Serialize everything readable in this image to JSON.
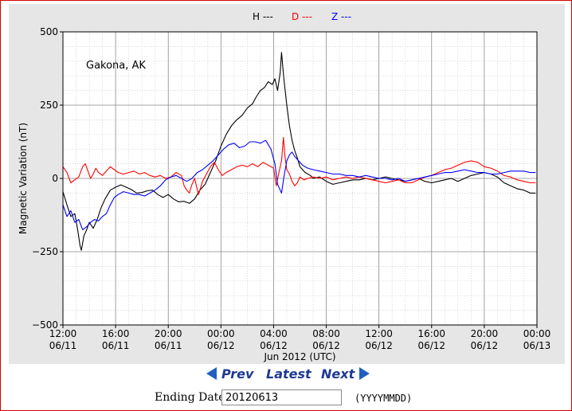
{
  "chart_data": {
    "type": "line",
    "legend": [
      {
        "name": "H ---",
        "color": "#000000"
      },
      {
        "name": "D ---",
        "color": "#ff0000"
      },
      {
        "name": "Z ---",
        "color": "#0000ff"
      }
    ],
    "annotation": "Gakona, AK",
    "ylabel": "Magnetic Variation (nT)",
    "xlabel": "Jun 2012 (UTC)",
    "ylim": [
      -500,
      500
    ],
    "yticks": [
      500,
      250,
      0,
      -250,
      -500
    ],
    "ytick_labels": [
      "500",
      "250",
      "0",
      "−250",
      "−500"
    ],
    "xlim": [
      0,
      36
    ],
    "xticks": [
      0,
      4,
      8,
      12,
      16,
      20,
      24,
      28,
      32,
      36
    ],
    "xtick_labels": [
      [
        "12:00",
        "06/11"
      ],
      [
        "16:00",
        "06/11"
      ],
      [
        "20:00",
        "06/11"
      ],
      [
        "00:00",
        "06/12"
      ],
      [
        "04:00",
        "06/12"
      ],
      [
        "08:00",
        "06/12"
      ],
      [
        "12:00",
        "06/12"
      ],
      [
        "16:00",
        "06/12"
      ],
      [
        "20:00",
        "06/12"
      ],
      [
        "00:00",
        "06/13"
      ]
    ],
    "legend_position": "top-center",
    "grid": true,
    "series": [
      {
        "name": "H ---",
        "color": "#000000",
        "points": [
          [
            0,
            -45
          ],
          [
            0.3,
            -90
          ],
          [
            0.6,
            -130
          ],
          [
            0.9,
            -120
          ],
          [
            1.1,
            -170
          ],
          [
            1.3,
            -230
          ],
          [
            1.4,
            -245
          ],
          [
            1.6,
            -195
          ],
          [
            1.8,
            -175
          ],
          [
            2.0,
            -150
          ],
          [
            2.3,
            -170
          ],
          [
            2.6,
            -140
          ],
          [
            2.9,
            -100
          ],
          [
            3.2,
            -70
          ],
          [
            3.6,
            -40
          ],
          [
            4.0,
            -30
          ],
          [
            4.4,
            -22
          ],
          [
            4.8,
            -30
          ],
          [
            5.2,
            -38
          ],
          [
            5.6,
            -50
          ],
          [
            6.0,
            -48
          ],
          [
            6.4,
            -42
          ],
          [
            6.8,
            -40
          ],
          [
            7.2,
            -55
          ],
          [
            7.6,
            -65
          ],
          [
            8.0,
            -55
          ],
          [
            8.4,
            -70
          ],
          [
            8.8,
            -80
          ],
          [
            9.2,
            -78
          ],
          [
            9.6,
            -85
          ],
          [
            10.0,
            -70
          ],
          [
            10.4,
            -40
          ],
          [
            10.8,
            -20
          ],
          [
            11.2,
            20
          ],
          [
            11.6,
            60
          ],
          [
            12.0,
            110
          ],
          [
            12.4,
            150
          ],
          [
            12.8,
            180
          ],
          [
            13.2,
            200
          ],
          [
            13.6,
            215
          ],
          [
            14.0,
            240
          ],
          [
            14.4,
            255
          ],
          [
            14.7,
            280
          ],
          [
            15.0,
            300
          ],
          [
            15.3,
            310
          ],
          [
            15.6,
            330
          ],
          [
            15.9,
            320
          ],
          [
            16.1,
            340
          ],
          [
            16.3,
            300
          ],
          [
            16.5,
            360
          ],
          [
            16.6,
            430
          ],
          [
            16.7,
            380
          ],
          [
            16.8,
            330
          ],
          [
            17.0,
            250
          ],
          [
            17.2,
            180
          ],
          [
            17.4,
            130
          ],
          [
            17.6,
            95
          ],
          [
            17.8,
            70
          ],
          [
            18.0,
            40
          ],
          [
            18.2,
            30
          ],
          [
            18.4,
            20
          ],
          [
            18.6,
            15
          ],
          [
            18.8,
            10
          ],
          [
            19.0,
            0
          ],
          [
            19.5,
            5
          ],
          [
            20.0,
            -10
          ],
          [
            20.5,
            -20
          ],
          [
            21.0,
            -15
          ],
          [
            21.5,
            -10
          ],
          [
            22.0,
            -5
          ],
          [
            22.5,
            -5
          ],
          [
            23.0,
            0
          ],
          [
            23.5,
            -5
          ],
          [
            24.0,
            0
          ],
          [
            24.5,
            5
          ],
          [
            25.0,
            0
          ],
          [
            25.5,
            -5
          ],
          [
            26.0,
            -10
          ],
          [
            26.5,
            -5
          ],
          [
            27.0,
            0
          ],
          [
            27.5,
            -10
          ],
          [
            28.0,
            -15
          ],
          [
            28.5,
            -10
          ],
          [
            29.0,
            -5
          ],
          [
            29.5,
            0
          ],
          [
            30.0,
            -10
          ],
          [
            30.5,
            0
          ],
          [
            31.0,
            10
          ],
          [
            31.5,
            15
          ],
          [
            32.0,
            20
          ],
          [
            32.5,
            15
          ],
          [
            33.0,
            5
          ],
          [
            33.5,
            -15
          ],
          [
            34.0,
            -25
          ],
          [
            34.5,
            -35
          ],
          [
            35.0,
            -40
          ],
          [
            35.5,
            -50
          ],
          [
            35.9,
            -50
          ]
        ]
      },
      {
        "name": "D ---",
        "color": "#ff0000",
        "points": [
          [
            0,
            40
          ],
          [
            0.3,
            20
          ],
          [
            0.6,
            -15
          ],
          [
            0.9,
            -5
          ],
          [
            1.2,
            5
          ],
          [
            1.5,
            40
          ],
          [
            1.7,
            50
          ],
          [
            1.9,
            25
          ],
          [
            2.1,
            0
          ],
          [
            2.3,
            15
          ],
          [
            2.5,
            35
          ],
          [
            2.7,
            20
          ],
          [
            3.0,
            10
          ],
          [
            3.3,
            25
          ],
          [
            3.6,
            40
          ],
          [
            3.9,
            30
          ],
          [
            4.2,
            20
          ],
          [
            4.6,
            15
          ],
          [
            5.0,
            20
          ],
          [
            5.4,
            25
          ],
          [
            5.8,
            15
          ],
          [
            6.2,
            20
          ],
          [
            6.6,
            10
          ],
          [
            7.0,
            5
          ],
          [
            7.4,
            10
          ],
          [
            7.8,
            0
          ],
          [
            8.2,
            5
          ],
          [
            8.6,
            20
          ],
          [
            9.0,
            10
          ],
          [
            9.2,
            -25
          ],
          [
            9.4,
            -40
          ],
          [
            9.6,
            -50
          ],
          [
            9.8,
            -20
          ],
          [
            10.0,
            0
          ],
          [
            10.3,
            -55
          ],
          [
            10.6,
            -10
          ],
          [
            10.9,
            15
          ],
          [
            11.2,
            40
          ],
          [
            11.5,
            55
          ],
          [
            11.8,
            30
          ],
          [
            12.1,
            10
          ],
          [
            12.4,
            20
          ],
          [
            12.8,
            30
          ],
          [
            13.2,
            40
          ],
          [
            13.6,
            45
          ],
          [
            14.0,
            40
          ],
          [
            14.4,
            50
          ],
          [
            14.8,
            40
          ],
          [
            15.2,
            55
          ],
          [
            15.6,
            45
          ],
          [
            16.0,
            35
          ],
          [
            16.2,
            -25
          ],
          [
            16.4,
            20
          ],
          [
            16.6,
            60
          ],
          [
            16.75,
            140
          ],
          [
            16.85,
            80
          ],
          [
            17.0,
            30
          ],
          [
            17.2,
            15
          ],
          [
            17.4,
            -10
          ],
          [
            17.6,
            -25
          ],
          [
            17.8,
            -15
          ],
          [
            18.0,
            5
          ],
          [
            18.3,
            -5
          ],
          [
            18.6,
            0
          ],
          [
            19.0,
            5
          ],
          [
            19.5,
            0
          ],
          [
            20.0,
            5
          ],
          [
            20.5,
            -5
          ],
          [
            21.0,
            0
          ],
          [
            21.5,
            5
          ],
          [
            22.0,
            0
          ],
          [
            22.5,
            5
          ],
          [
            23.0,
            0
          ],
          [
            23.5,
            -5
          ],
          [
            24.0,
            -10
          ],
          [
            24.5,
            -15
          ],
          [
            25.0,
            -10
          ],
          [
            25.5,
            -5
          ],
          [
            26.0,
            -15
          ],
          [
            26.5,
            -15
          ],
          [
            27.0,
            -5
          ],
          [
            27.5,
            5
          ],
          [
            28.0,
            10
          ],
          [
            28.5,
            20
          ],
          [
            29.0,
            30
          ],
          [
            29.5,
            35
          ],
          [
            30.0,
            45
          ],
          [
            30.5,
            55
          ],
          [
            31.0,
            60
          ],
          [
            31.5,
            55
          ],
          [
            32.0,
            40
          ],
          [
            32.5,
            35
          ],
          [
            33.0,
            25
          ],
          [
            33.5,
            10
          ],
          [
            34.0,
            5
          ],
          [
            34.5,
            -5
          ],
          [
            35.0,
            -10
          ],
          [
            35.5,
            -15
          ],
          [
            35.9,
            -15
          ]
        ]
      },
      {
        "name": "Z ---",
        "color": "#0000ff",
        "points": [
          [
            0,
            -90
          ],
          [
            0.3,
            -130
          ],
          [
            0.6,
            -110
          ],
          [
            0.9,
            -150
          ],
          [
            1.2,
            -140
          ],
          [
            1.5,
            -175
          ],
          [
            1.8,
            -165
          ],
          [
            2.1,
            -150
          ],
          [
            2.4,
            -140
          ],
          [
            2.7,
            -145
          ],
          [
            3.0,
            -130
          ],
          [
            3.3,
            -120
          ],
          [
            3.6,
            -90
          ],
          [
            3.9,
            -65
          ],
          [
            4.2,
            -55
          ],
          [
            4.6,
            -45
          ],
          [
            5.0,
            -50
          ],
          [
            5.4,
            -55
          ],
          [
            5.8,
            -55
          ],
          [
            6.2,
            -60
          ],
          [
            6.6,
            -50
          ],
          [
            7.0,
            -40
          ],
          [
            7.4,
            -25
          ],
          [
            7.8,
            -5
          ],
          [
            8.2,
            5
          ],
          [
            8.6,
            10
          ],
          [
            9.0,
            0
          ],
          [
            9.4,
            -10
          ],
          [
            9.8,
            0
          ],
          [
            10.2,
            20
          ],
          [
            10.6,
            30
          ],
          [
            11.0,
            45
          ],
          [
            11.4,
            60
          ],
          [
            11.8,
            80
          ],
          [
            12.2,
            100
          ],
          [
            12.6,
            115
          ],
          [
            13.0,
            120
          ],
          [
            13.4,
            105
          ],
          [
            13.8,
            110
          ],
          [
            14.2,
            125
          ],
          [
            14.6,
            125
          ],
          [
            15.0,
            120
          ],
          [
            15.4,
            130
          ],
          [
            15.8,
            100
          ],
          [
            16.1,
            50
          ],
          [
            16.3,
            -20
          ],
          [
            16.5,
            -40
          ],
          [
            16.6,
            -50
          ],
          [
            16.8,
            10
          ],
          [
            17.0,
            60
          ],
          [
            17.2,
            80
          ],
          [
            17.4,
            90
          ],
          [
            17.6,
            75
          ],
          [
            17.9,
            60
          ],
          [
            18.2,
            45
          ],
          [
            18.6,
            35
          ],
          [
            19.0,
            30
          ],
          [
            19.5,
            25
          ],
          [
            20.0,
            20
          ],
          [
            20.5,
            15
          ],
          [
            21.0,
            15
          ],
          [
            21.5,
            10
          ],
          [
            22.0,
            10
          ],
          [
            22.5,
            5
          ],
          [
            23.0,
            10
          ],
          [
            23.5,
            5
          ],
          [
            24.0,
            0
          ],
          [
            24.5,
            0
          ],
          [
            25.0,
            -5
          ],
          [
            25.5,
            0
          ],
          [
            26.0,
            -10
          ],
          [
            26.5,
            -5
          ],
          [
            27.0,
            0
          ],
          [
            27.5,
            5
          ],
          [
            28.0,
            10
          ],
          [
            28.5,
            15
          ],
          [
            29.0,
            20
          ],
          [
            29.5,
            20
          ],
          [
            30.0,
            25
          ],
          [
            30.5,
            30
          ],
          [
            31.0,
            25
          ],
          [
            31.5,
            20
          ],
          [
            32.0,
            20
          ],
          [
            32.5,
            15
          ],
          [
            33.0,
            15
          ],
          [
            33.5,
            20
          ],
          [
            34.0,
            25
          ],
          [
            34.5,
            25
          ],
          [
            35.0,
            25
          ],
          [
            35.5,
            20
          ],
          [
            35.9,
            20
          ]
        ]
      }
    ]
  },
  "nav": {
    "prev_label": "Prev",
    "latest_label": "Latest",
    "next_label": "Next"
  },
  "form": {
    "ending_date_label": "Ending Date:",
    "ending_date_value": "20120613",
    "format_hint": "(YYYYMMDD)"
  }
}
